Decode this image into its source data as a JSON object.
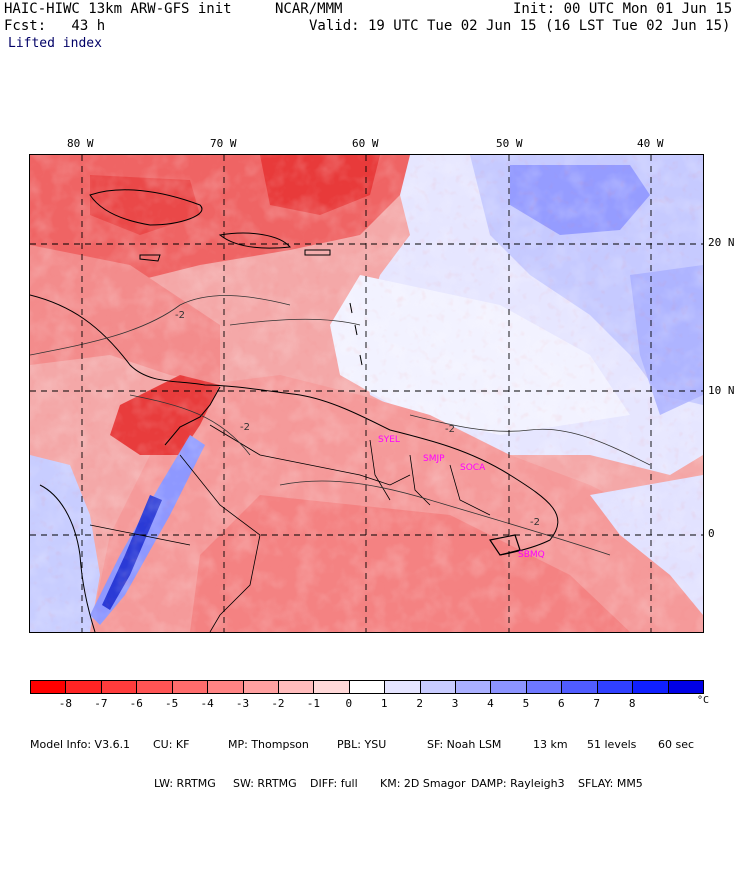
{
  "header": {
    "model": "HAIC-HIWC 13km ARW-GFS init",
    "org": "NCAR/MMM",
    "init": "Init: 00 UTC Mon 01 Jun 15",
    "fcst": "Fcst:   43 h",
    "valid": "Valid: 19 UTC Tue 02 Jun 15 (16 LST Tue 02 Jun 15)",
    "field": "Lifted index"
  },
  "map": {
    "lon_labels": [
      "80 W",
      "70 W",
      "60 W",
      "50 W",
      "40 W"
    ],
    "lat_labels": [
      "20 N",
      "10 N",
      "0"
    ],
    "stations": [
      "SYEL",
      "SMJP",
      "SOCA",
      "SBMQ"
    ],
    "contour_labels": [
      "-2",
      "-2",
      "-2",
      "-2"
    ],
    "colors": {
      "strong_negative": "#ff0000",
      "negative": "#f06a6a",
      "weak_negative": "#fbc4c4",
      "neutral": "#ffffff",
      "weak_positive": "#d4d8ff",
      "positive": "#8894ff",
      "strong_positive": "#2a36e6"
    }
  },
  "colorbar": {
    "ticks": [
      "-8",
      "-7",
      "-6",
      "-5",
      "-4",
      "-3",
      "-2",
      "-1",
      "0",
      "1",
      "2",
      "3",
      "4",
      "5",
      "6",
      "7",
      "8"
    ],
    "unit": "°C",
    "colors": [
      "#ff0000",
      "#ff2424",
      "#ff3c3c",
      "#ff5454",
      "#ff6c6c",
      "#ff8484",
      "#ffa0a0",
      "#ffbcbc",
      "#ffd8d8",
      "#ffffff",
      "#e4e4ff",
      "#c8ccff",
      "#aab0ff",
      "#8c94ff",
      "#6e78ff",
      "#505cff",
      "#3040ff",
      "#1020ff",
      "#0000e6"
    ]
  },
  "model_info": {
    "line1": [
      "Model Info: V3.6.1",
      "CU: KF",
      "MP: Thompson",
      "PBL: YSU",
      "SF: Noah LSM",
      "13 km",
      "51 levels",
      "60 sec"
    ],
    "line2": [
      "LW: RRTMG",
      "SW: RRTMG",
      "DIFF: full",
      "KM: 2D Smagor",
      "DAMP: Rayleigh3",
      "SFLAY: MM5"
    ]
  }
}
